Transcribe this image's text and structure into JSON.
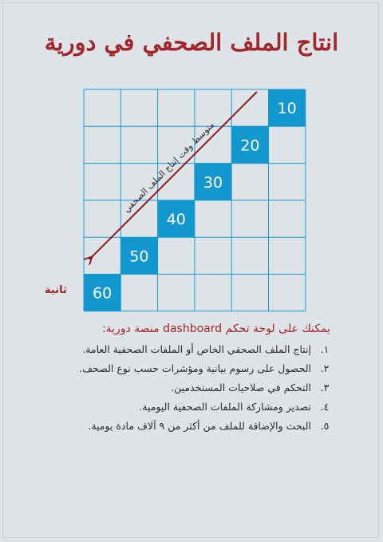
{
  "title": "انتاج الملف الصحفي في دورية",
  "diagram": {
    "boxes": [
      "10",
      "20",
      "30",
      "40",
      "50",
      "60"
    ],
    "arrow_label": "متوسط وقت إنتاج الملف الصحفي",
    "unit": "ثانية",
    "colors": {
      "box": "#1297cf",
      "grid": "#1a9bd4",
      "arrow": "#8b1a1f"
    }
  },
  "subtitle": "يمكنك على لوحة تحكم dashboard منصة دورية:",
  "features": [
    {
      "num": "١.",
      "text": "إنتاج الملف الصحفي الخاص أو الملفات الصحفية العامة."
    },
    {
      "num": "٢.",
      "text": "الحصول على رسوم بيانية ومؤشرات حسب نوع الصحف."
    },
    {
      "num": "٣.",
      "text": "التحكم في صلاحيات المستخدمين."
    },
    {
      "num": "٤.",
      "text": "تصدير ومشاركة الملفات الصحفية اليومية."
    },
    {
      "num": "٥.",
      "text": "البحث والإضافة للملف من أكثر من ٩ آلاف مادة يومية."
    }
  ]
}
